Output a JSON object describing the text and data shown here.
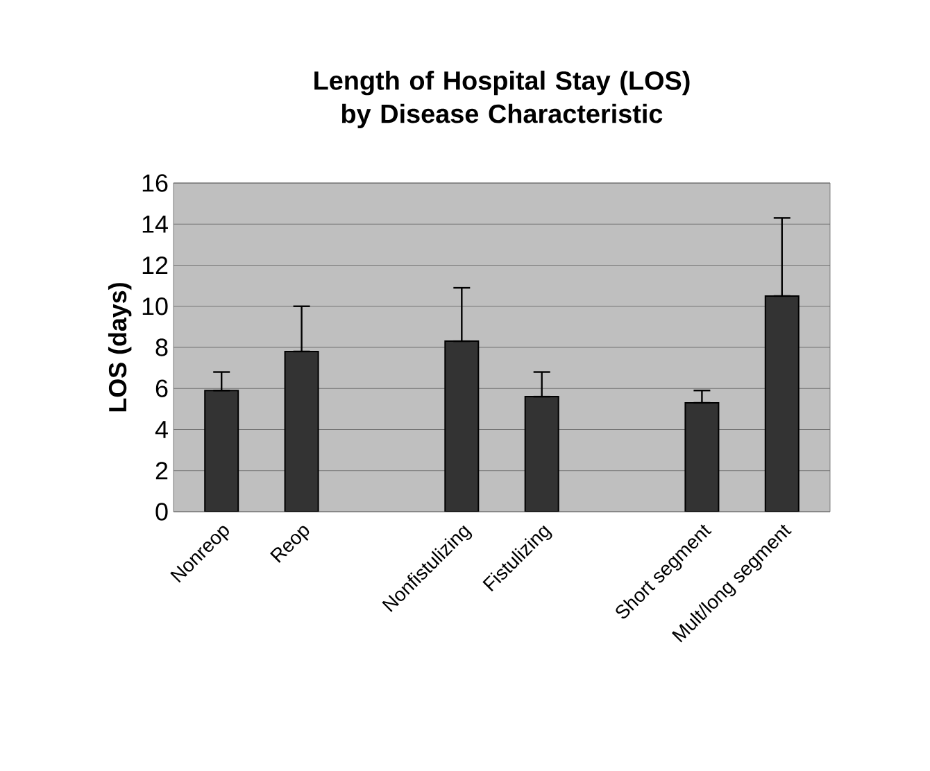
{
  "chart_data": {
    "type": "bar",
    "title": "Length of Hospital Stay (LOS) by Disease Characteristic",
    "ylabel": "LOS (days)",
    "categories": [
      "Nonreop",
      "Reop",
      null,
      "Nonfistulizing",
      "Fistulizing",
      null,
      "Short segment",
      "Mult/long segment"
    ],
    "values": [
      5.9,
      7.8,
      null,
      8.3,
      5.6,
      null,
      5.3,
      10.5
    ],
    "errors": [
      [
        5.9,
        6.8
      ],
      [
        7.8,
        10.0
      ],
      null,
      [
        8.3,
        10.9
      ],
      [
        5.6,
        6.8
      ],
      null,
      [
        5.3,
        5.9
      ],
      [
        10.5,
        14.3
      ]
    ],
    "color": "#333333",
    "ylim": [
      0,
      16
    ],
    "yticks": [
      0,
      2,
      4,
      6,
      8,
      10,
      12,
      14,
      16
    ],
    "grid": "y"
  }
}
